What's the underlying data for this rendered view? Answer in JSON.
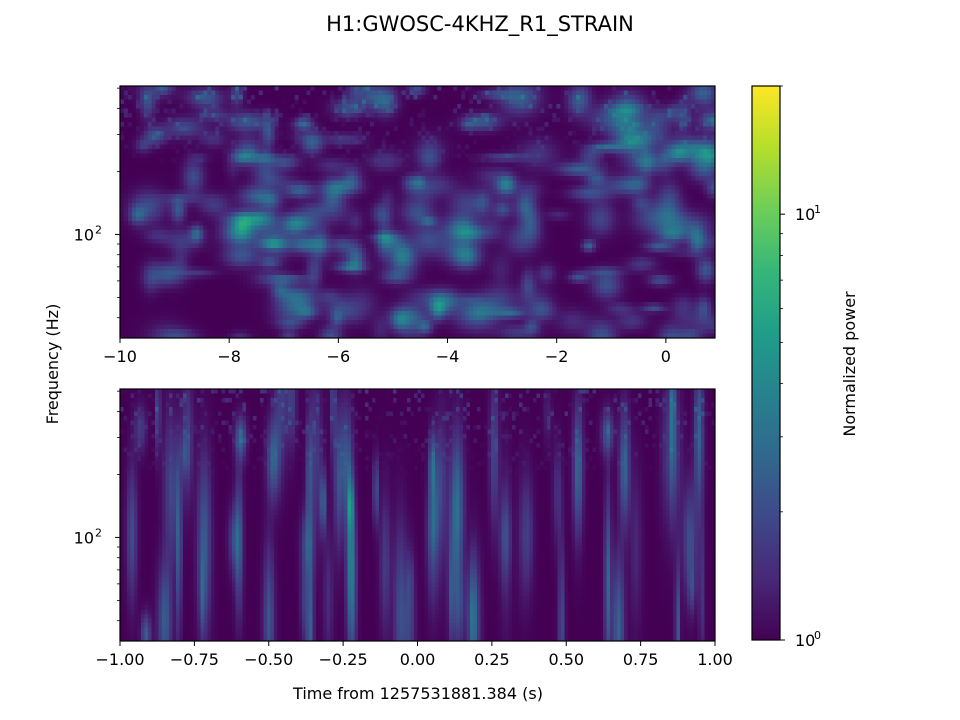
{
  "title": "H1:GWOSC-4KHZ_R1_STRAIN",
  "y_axis_label": "Frequency (Hz)",
  "colorbar_label": "Normalized power",
  "colorbar_ticks": [
    {
      "base": "10",
      "exp": "0",
      "value": 1
    },
    {
      "base": "10",
      "exp": "1",
      "value": 10
    }
  ],
  "colormap": [
    "#440154",
    "#482878",
    "#3e4989",
    "#31688e",
    "#26828e",
    "#1f9e89",
    "#35b779",
    "#6ece58",
    "#b5de2b",
    "#fde725"
  ],
  "chart_data": [
    {
      "type": "heatmap",
      "name": "q-transform-full",
      "x_range": [
        -10,
        0.9
      ],
      "x_ticks": [
        -10,
        -8,
        -6,
        -4,
        -2,
        0
      ],
      "x_tick_labels": [
        "−10",
        "−8",
        "−6",
        "−4",
        "−2",
        "0"
      ],
      "xlabel": "",
      "y_scale": "log",
      "y_range": [
        32,
        512
      ],
      "y_tick": {
        "value": 100,
        "base": "10",
        "exp": "2"
      },
      "color_scale": "log",
      "color_range": [
        1,
        20
      ]
    },
    {
      "type": "heatmap",
      "name": "q-transform-zoom",
      "x_range": [
        -1,
        1
      ],
      "x_ticks": [
        -1,
        -0.75,
        -0.5,
        -0.25,
        0,
        0.25,
        0.5,
        0.75,
        1
      ],
      "x_tick_labels": [
        "−1.00",
        "−0.75",
        "−0.50",
        "−0.25",
        "0.00",
        "0.25",
        "0.50",
        "0.75",
        "1.00"
      ],
      "xlabel": "Time from 1257531881.384 (s)",
      "y_scale": "log",
      "y_range": [
        32,
        512
      ],
      "y_tick": {
        "value": 100,
        "base": "10",
        "exp": "2"
      },
      "color_scale": "log",
      "color_range": [
        1,
        20
      ]
    }
  ]
}
